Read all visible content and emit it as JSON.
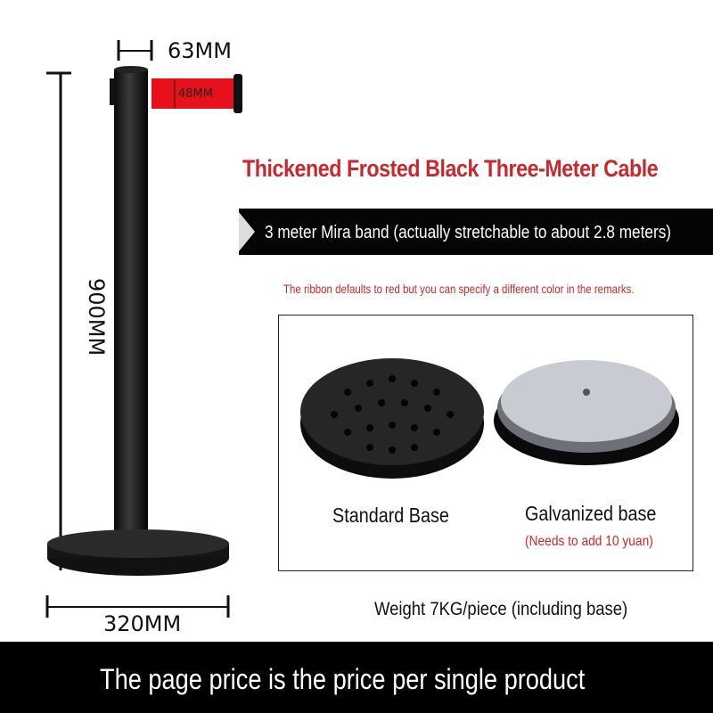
{
  "dimensions": {
    "post_diameter": "63MM",
    "ribbon_width": "48MM",
    "height": "900MM",
    "base_diameter": "320MM"
  },
  "title": "Thickened Frosted Black Three-Meter Cable",
  "band_text": "3 meter Mira band (actually stretchable to about 2.8 meters)",
  "remark": "The ribbon defaults to red but you can specify a different color in the remarks.",
  "bases": [
    {
      "label": "Standard Base"
    },
    {
      "label": "Galvanized base",
      "note": "(Needs to add 10 yuan)"
    }
  ],
  "weight": "Weight 7KG/piece (including base)",
  "footer": "The page price is the price per single product",
  "colors": {
    "accent_red": "#c8282c",
    "ribbon_red": "#e8101a",
    "black": "#050505"
  }
}
